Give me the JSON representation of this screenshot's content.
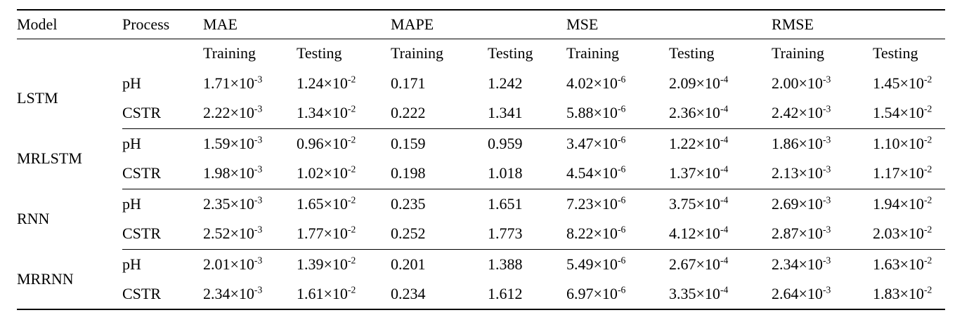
{
  "colors": {
    "text": "#000000",
    "background": "#ffffff",
    "rule": "#000000"
  },
  "table": {
    "header": {
      "model": "Model",
      "process": "Process",
      "metrics": [
        "MAE",
        "MAPE",
        "MSE",
        "RMSE"
      ],
      "sub": [
        "Training",
        "Testing"
      ]
    },
    "groups": [
      {
        "model": "LSTM",
        "rows": [
          {
            "process": "pH",
            "values": [
              "1.71×10^-3",
              "1.24×10^-2",
              "0.171",
              "1.242",
              "4.02×10^-6",
              "2.09×10^-4",
              "2.00×10^-3",
              "1.45×10^-2"
            ]
          },
          {
            "process": "CSTR",
            "values": [
              "2.22×10^-3",
              "1.34×10^-2",
              "0.222",
              "1.341",
              "5.88×10^-6",
              "2.36×10^-4",
              "2.42×10^-3",
              "1.54×10^-2"
            ]
          }
        ]
      },
      {
        "model": "MRLSTM",
        "rows": [
          {
            "process": "pH",
            "values": [
              "1.59×10^-3",
              "0.96×10^-2",
              "0.159",
              "0.959",
              "3.47×10^-6",
              "1.22×10^-4",
              "1.86×10^-3",
              "1.10×10^-2"
            ]
          },
          {
            "process": "CSTR",
            "values": [
              "1.98×10^-3",
              "1.02×10^-2",
              "0.198",
              "1.018",
              "4.54×10^-6",
              "1.37×10^-4",
              "2.13×10^-3",
              "1.17×10^-2"
            ]
          }
        ]
      },
      {
        "model": "RNN",
        "rows": [
          {
            "process": "pH",
            "values": [
              "2.35×10^-3",
              "1.65×10^-2",
              "0.235",
              "1.651",
              "7.23×10^-6",
              "3.75×10^-4",
              "2.69×10^-3",
              "1.94×10^-2"
            ]
          },
          {
            "process": "CSTR",
            "values": [
              "2.52×10^-3",
              "1.77×10^-2",
              "0.252",
              "1.773",
              "8.22×10^-6",
              "4.12×10^-4",
              "2.87×10^-3",
              "2.03×10^-2"
            ]
          }
        ]
      },
      {
        "model": "MRRNN",
        "rows": [
          {
            "process": "pH",
            "values": [
              "2.01×10^-3",
              "1.39×10^-2",
              "0.201",
              "1.388",
              "5.49×10^-6",
              "2.67×10^-4",
              "2.34×10^-3",
              "1.63×10^-2"
            ]
          },
          {
            "process": "CSTR",
            "values": [
              "2.34×10^-3",
              "1.61×10^-2",
              "0.234",
              "1.612",
              "6.97×10^-6",
              "3.35×10^-4",
              "2.64×10^-3",
              "1.83×10^-2"
            ]
          }
        ]
      }
    ]
  }
}
